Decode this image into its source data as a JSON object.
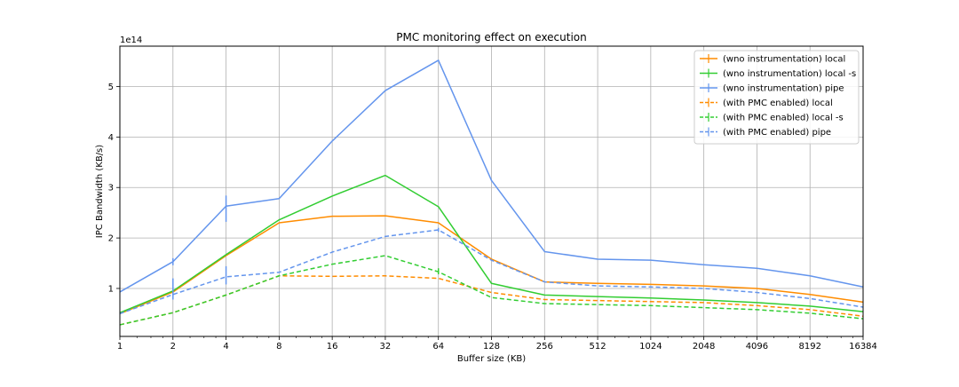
{
  "chart_data": {
    "type": "line",
    "title": "PMC monitoring effect on execution",
    "xlabel": "Buffer size (KB)",
    "ylabel": "IPC Bandwidth (KB/s)",
    "y_multiplier_label": "1e14",
    "x_scale": "log2",
    "x": [
      1,
      2,
      4,
      8,
      16,
      32,
      64,
      128,
      256,
      512,
      1024,
      2048,
      4096,
      8192,
      16384
    ],
    "x_tick_labels": [
      "1",
      "2",
      "4",
      "8",
      "16",
      "32",
      "64",
      "128",
      "256",
      "512",
      "1024",
      "2048",
      "4096",
      "8192",
      "16384"
    ],
    "xlim": [
      1,
      16384
    ],
    "ylim": [
      0.05,
      5.8
    ],
    "y_ticks": [
      1,
      2,
      3,
      4,
      5
    ],
    "y_tick_labels": [
      "1",
      "2",
      "3",
      "4",
      "5"
    ],
    "grid": true,
    "legend_placement": "top-right",
    "series": [
      {
        "name": "(wno instrumentation) local",
        "color": "#ff8c00",
        "dash": "solid",
        "values": [
          0.5,
          0.93,
          1.65,
          2.3,
          2.43,
          2.44,
          2.3,
          1.58,
          1.13,
          1.1,
          1.08,
          1.05,
          1.0,
          0.88,
          0.73
        ]
      },
      {
        "name": "(wno instrumentation) local -s",
        "color": "#32cd32",
        "dash": "solid",
        "values": [
          0.52,
          0.95,
          1.67,
          2.36,
          2.83,
          3.24,
          2.62,
          1.1,
          0.87,
          0.84,
          0.81,
          0.77,
          0.72,
          0.65,
          0.54
        ]
      },
      {
        "name": "(wno instrumentation) pipe",
        "color": "#6495ed",
        "dash": "solid",
        "values": [
          0.93,
          1.53,
          2.63,
          2.78,
          3.92,
          4.92,
          5.52,
          3.14,
          1.73,
          1.58,
          1.56,
          1.47,
          1.4,
          1.25,
          1.03
        ]
      },
      {
        "name": "(with PMC enabled) local",
        "color": "#ff8c00",
        "dash": "dashed",
        "values": [
          0.28,
          0.52,
          0.87,
          1.25,
          1.24,
          1.25,
          1.2,
          0.92,
          0.78,
          0.76,
          0.74,
          0.72,
          0.66,
          0.58,
          0.45
        ]
      },
      {
        "name": "(with PMC enabled) local -s",
        "color": "#32cd32",
        "dash": "dashed",
        "values": [
          0.28,
          0.52,
          0.87,
          1.25,
          1.48,
          1.65,
          1.33,
          0.82,
          0.7,
          0.68,
          0.66,
          0.62,
          0.58,
          0.51,
          0.4
        ]
      },
      {
        "name": "(with PMC enabled) pipe",
        "color": "#6495ed",
        "dash": "dashed",
        "values": [
          0.5,
          0.88,
          1.23,
          1.32,
          1.72,
          2.03,
          2.16,
          1.56,
          1.13,
          1.05,
          1.03,
          1.0,
          0.92,
          0.8,
          0.63
        ]
      }
    ],
    "error_bars": [
      {
        "series": 2,
        "x": 2,
        "low": 1.46,
        "high": 1.6
      },
      {
        "series": 2,
        "x": 4,
        "low": 2.32,
        "high": 2.84
      },
      {
        "series": 5,
        "x": 2,
        "low": 0.78,
        "high": 1.2
      },
      {
        "series": 5,
        "x": 4,
        "low": 1.08,
        "high": 1.44
      },
      {
        "series": 5,
        "x": 64,
        "low": 2.12,
        "high": 2.2
      },
      {
        "series": 4,
        "x": 64,
        "low": 1.28,
        "high": 1.4
      }
    ]
  }
}
